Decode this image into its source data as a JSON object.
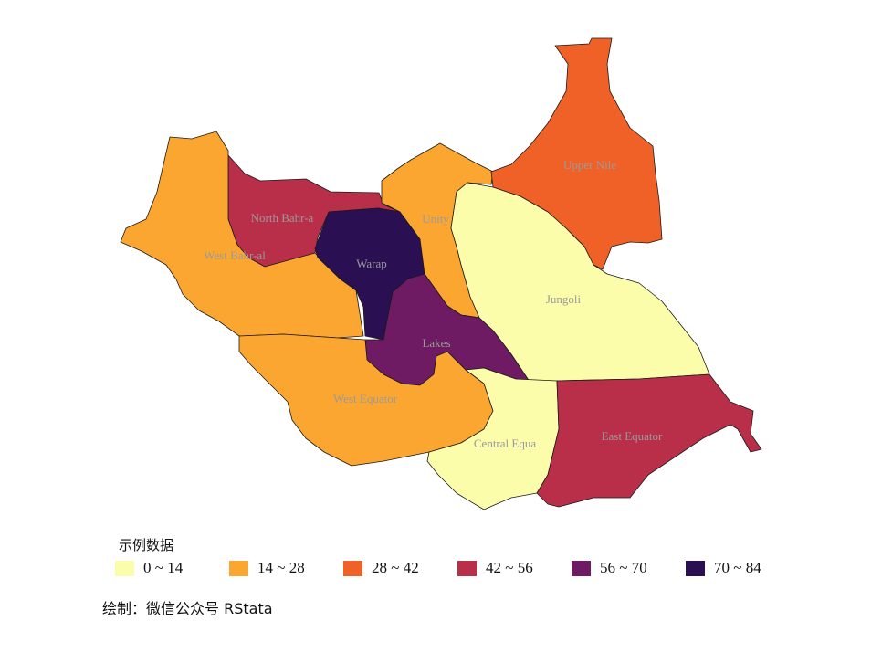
{
  "legend": {
    "title": "示例数据",
    "bins": [
      {
        "label": "0 ~ 14",
        "color": "#fcfdaa"
      },
      {
        "label": "14 ~ 28",
        "color": "#fca632"
      },
      {
        "label": "28 ~ 42",
        "color": "#f06128"
      },
      {
        "label": "42 ~ 56",
        "color": "#b92f4a"
      },
      {
        "label": "56 ~ 70",
        "color": "#6e1b63"
      },
      {
        "label": "70 ~ 84",
        "color": "#2a1053"
      }
    ]
  },
  "regions": [
    {
      "name": "North Bahr-a",
      "bin": 3
    },
    {
      "name": "West Bahr-al",
      "bin": 1
    },
    {
      "name": "Warap",
      "bin": 5
    },
    {
      "name": "Unity",
      "bin": 1
    },
    {
      "name": "Upper Nile",
      "bin": 2
    },
    {
      "name": "Jungoli",
      "bin": 0
    },
    {
      "name": "Lakes",
      "bin": 4
    },
    {
      "name": "West Equator",
      "bin": 1
    },
    {
      "name": "Central Equa",
      "bin": 0
    },
    {
      "name": "East Equator",
      "bin": 3
    }
  ],
  "credit": "绘制：微信公众号 RStata"
}
